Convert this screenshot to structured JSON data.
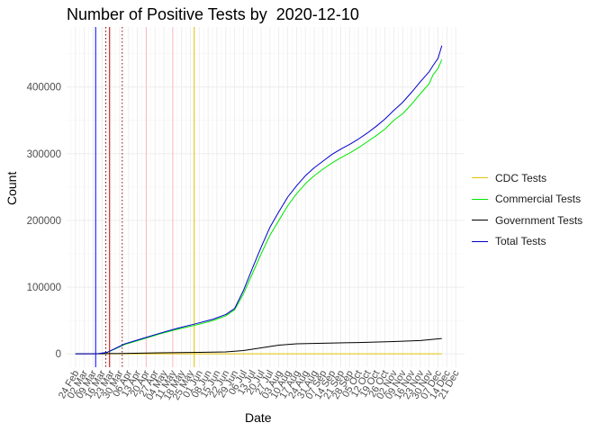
{
  "chart_data": {
    "type": "line",
    "title": "Number of Positive Tests by  2020-12-10",
    "xlabel": "Date",
    "ylabel": "Count",
    "x_range": [
      "2020-02-17",
      "2020-12-28"
    ],
    "ylim": [
      -20000,
      490000
    ],
    "y_ticks": [
      0,
      100000,
      200000,
      300000,
      400000
    ],
    "y_tick_labels": [
      "0",
      "100000",
      "200000",
      "300000",
      "400000"
    ],
    "x_ticks": [
      "2020-02-24",
      "2020-03-02",
      "2020-03-09",
      "2020-03-16",
      "2020-03-23",
      "2020-03-30",
      "2020-04-06",
      "2020-04-13",
      "2020-04-20",
      "2020-04-27",
      "2020-05-04",
      "2020-05-11",
      "2020-05-18",
      "2020-05-25",
      "2020-06-01",
      "2020-06-08",
      "2020-06-15",
      "2020-06-22",
      "2020-06-29",
      "2020-07-06",
      "2020-07-13",
      "2020-07-20",
      "2020-07-27",
      "2020-08-03",
      "2020-08-10",
      "2020-08-17",
      "2020-08-24",
      "2020-08-31",
      "2020-09-07",
      "2020-09-14",
      "2020-09-21",
      "2020-09-28",
      "2020-10-05",
      "2020-10-12",
      "2020-10-19",
      "2020-10-26",
      "2020-11-02",
      "2020-11-09",
      "2020-11-16",
      "2020-11-23",
      "2020-11-30",
      "2020-12-07",
      "2020-12-14",
      "2020-12-21"
    ],
    "x_tick_labels": [
      "24 Feb",
      "02 Mar",
      "09 Mar",
      "16 Mar",
      "23 Mar",
      "30 Mar",
      "06 Apr",
      "13 Apr",
      "20 Apr",
      "27 Apr",
      "04 May",
      "11 May",
      "18 May",
      "25 May",
      "01 Jun",
      "08 Jun",
      "15 Jun",
      "22 Jun",
      "29 Jun",
      "06 Jul",
      "13 Jul",
      "20 Jul",
      "27 Jul",
      "03 Aug",
      "10 Aug",
      "17 Aug",
      "24 Aug",
      "31 Aug",
      "07 Sep",
      "14 Sep",
      "21 Sep",
      "28 Sep",
      "05 Oct",
      "12 Oct",
      "19 Oct",
      "26 Oct",
      "02 Nov",
      "09 Nov",
      "16 Nov",
      "23 Nov",
      "30 Nov",
      "07 Dec",
      "14 Dec",
      "21 Dec"
    ],
    "grid": true,
    "legend_position": "right",
    "series": [
      {
        "name": "CDC Tests",
        "color": "#E6C200",
        "points": [
          [
            "2020-02-24",
            0
          ],
          [
            "2020-05-28",
            0
          ],
          [
            "2020-12-10",
            0
          ]
        ]
      },
      {
        "name": "Commercial Tests",
        "color": "#00E600",
        "points": [
          [
            "2020-03-12",
            0
          ],
          [
            "2020-03-20",
            2000
          ],
          [
            "2020-03-27",
            8000
          ],
          [
            "2020-04-03",
            14000
          ],
          [
            "2020-04-17",
            22000
          ],
          [
            "2020-05-01",
            30000
          ],
          [
            "2020-05-15",
            37000
          ],
          [
            "2020-05-29",
            43000
          ],
          [
            "2020-06-12",
            50000
          ],
          [
            "2020-06-22",
            57000
          ],
          [
            "2020-06-29",
            66000
          ],
          [
            "2020-07-06",
            90000
          ],
          [
            "2020-07-13",
            120000
          ],
          [
            "2020-07-20",
            150000
          ],
          [
            "2020-07-27",
            178000
          ],
          [
            "2020-08-03",
            200000
          ],
          [
            "2020-08-10",
            222000
          ],
          [
            "2020-08-17",
            240000
          ],
          [
            "2020-08-24",
            255000
          ],
          [
            "2020-08-31",
            267000
          ],
          [
            "2020-09-07",
            277000
          ],
          [
            "2020-09-14",
            286000
          ],
          [
            "2020-09-21",
            294000
          ],
          [
            "2020-09-28",
            301000
          ],
          [
            "2020-10-05",
            309000
          ],
          [
            "2020-10-12",
            318000
          ],
          [
            "2020-10-19",
            327000
          ],
          [
            "2020-10-26",
            337000
          ],
          [
            "2020-11-02",
            350000
          ],
          [
            "2020-11-09",
            360000
          ],
          [
            "2020-11-16",
            374000
          ],
          [
            "2020-11-23",
            390000
          ],
          [
            "2020-11-30",
            405000
          ],
          [
            "2020-12-03",
            418000
          ],
          [
            "2020-12-07",
            428000
          ],
          [
            "2020-12-10",
            441000
          ]
        ]
      },
      {
        "name": "Government Tests",
        "color": "#000000",
        "points": [
          [
            "2020-02-24",
            0
          ],
          [
            "2020-03-16",
            200
          ],
          [
            "2020-04-06",
            800
          ],
          [
            "2020-05-01",
            1500
          ],
          [
            "2020-06-01",
            2200
          ],
          [
            "2020-06-22",
            3000
          ],
          [
            "2020-07-06",
            5000
          ],
          [
            "2020-07-20",
            9000
          ],
          [
            "2020-08-03",
            13000
          ],
          [
            "2020-08-17",
            15000
          ],
          [
            "2020-09-07",
            16000
          ],
          [
            "2020-10-05",
            17000
          ],
          [
            "2020-11-02",
            18500
          ],
          [
            "2020-11-23",
            20000
          ],
          [
            "2020-12-10",
            23000
          ]
        ]
      },
      {
        "name": "Total Tests",
        "color": "#0000CC",
        "points": [
          [
            "2020-02-24",
            0
          ],
          [
            "2020-03-12",
            0
          ],
          [
            "2020-03-20",
            2200
          ],
          [
            "2020-03-27",
            8500
          ],
          [
            "2020-04-03",
            15000
          ],
          [
            "2020-04-17",
            23000
          ],
          [
            "2020-05-01",
            31000
          ],
          [
            "2020-05-15",
            38500
          ],
          [
            "2020-05-29",
            45000
          ],
          [
            "2020-06-12",
            52000
          ],
          [
            "2020-06-22",
            59000
          ],
          [
            "2020-06-29",
            68000
          ],
          [
            "2020-07-06",
            95000
          ],
          [
            "2020-07-13",
            128000
          ],
          [
            "2020-07-20",
            160000
          ],
          [
            "2020-07-27",
            190000
          ],
          [
            "2020-08-03",
            213000
          ],
          [
            "2020-08-10",
            235000
          ],
          [
            "2020-08-17",
            252000
          ],
          [
            "2020-08-24",
            267000
          ],
          [
            "2020-08-31",
            279000
          ],
          [
            "2020-09-07",
            289000
          ],
          [
            "2020-09-14",
            299000
          ],
          [
            "2020-09-21",
            307000
          ],
          [
            "2020-09-28",
            314000
          ],
          [
            "2020-10-05",
            322000
          ],
          [
            "2020-10-12",
            331000
          ],
          [
            "2020-10-19",
            341000
          ],
          [
            "2020-10-26",
            352000
          ],
          [
            "2020-11-02",
            365000
          ],
          [
            "2020-11-09",
            377000
          ],
          [
            "2020-11-16",
            392000
          ],
          [
            "2020-11-23",
            408000
          ],
          [
            "2020-11-30",
            423000
          ],
          [
            "2020-12-03",
            432000
          ],
          [
            "2020-12-07",
            443000
          ],
          [
            "2020-12-10",
            462000
          ]
        ]
      }
    ],
    "reference_lines": [
      {
        "date": "2020-03-11",
        "color": "#0000FF",
        "style": "solid"
      },
      {
        "date": "2020-03-19",
        "color": "#8B0000",
        "style": "dotted"
      },
      {
        "date": "2020-03-22",
        "color": "#CC0000",
        "style": "solid"
      },
      {
        "date": "2020-04-01",
        "color": "#8B0000",
        "style": "dotted"
      },
      {
        "date": "2020-04-20",
        "color": "#FFB6C1",
        "style": "solid"
      },
      {
        "date": "2020-05-11",
        "color": "#FFB6C1",
        "style": "solid"
      },
      {
        "date": "2020-05-28",
        "color": "#E6C200",
        "style": "solid"
      }
    ]
  }
}
